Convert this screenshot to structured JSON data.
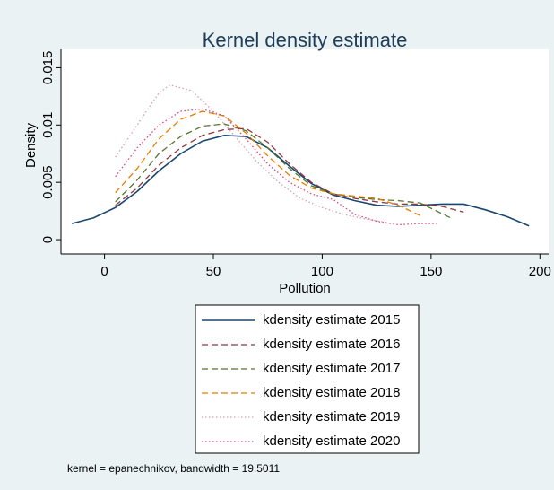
{
  "chart_data": {
    "type": "line",
    "title": "Kernel density estimate",
    "x_label": "Pollution",
    "y_label": "Density",
    "note": "kernel = epanechnikov, bandwidth = 19.5011",
    "xlim": [
      -20,
      204
    ],
    "xticks": [
      0,
      50,
      100,
      150,
      200
    ],
    "ylim": [
      -0.00125,
      0.0166
    ],
    "yticks": [
      0,
      0.005,
      0.01,
      0.015
    ],
    "series": [
      {
        "name": "kdensity estimate 2015",
        "color": "#1a476f",
        "style": "solid",
        "x": [
          -15,
          -5,
          5,
          15,
          25,
          35,
          45,
          55,
          65,
          75,
          85,
          95,
          105,
          115,
          125,
          135,
          145,
          155,
          165,
          175,
          185,
          195
        ],
        "values": [
          0.0014,
          0.0019,
          0.0028,
          0.0042,
          0.006,
          0.0075,
          0.0086,
          0.0091,
          0.009,
          0.008,
          0.0064,
          0.0049,
          0.0039,
          0.0034,
          0.003,
          0.0029,
          0.003,
          0.0031,
          0.0031,
          0.0026,
          0.002,
          0.0012
        ]
      },
      {
        "name": "kdensity estimate 2016",
        "color": "#90353b",
        "style": "dashed",
        "x": [
          5,
          15,
          25,
          35,
          45,
          55,
          65,
          75,
          85,
          95,
          105,
          115,
          125,
          135,
          145,
          155,
          165
        ],
        "values": [
          0.003,
          0.0045,
          0.0065,
          0.008,
          0.0091,
          0.0096,
          0.0097,
          0.0085,
          0.0066,
          0.005,
          0.004,
          0.0036,
          0.0033,
          0.0031,
          0.0031,
          0.0029,
          0.0024
        ]
      },
      {
        "name": "kdensity estimate 2017",
        "color": "#55752f",
        "style": "dashed",
        "x": [
          5,
          15,
          25,
          35,
          45,
          55,
          65,
          75,
          85,
          95,
          105,
          115,
          125,
          135,
          145,
          160
        ],
        "values": [
          0.0033,
          0.0052,
          0.0075,
          0.009,
          0.0099,
          0.0101,
          0.0095,
          0.008,
          0.0062,
          0.0047,
          0.004,
          0.0037,
          0.0035,
          0.0034,
          0.0032,
          0.0018
        ]
      },
      {
        "name": "kdensity estimate 2018",
        "color": "#e37e00",
        "style": "dashed",
        "x": [
          5,
          15,
          25,
          35,
          45,
          55,
          65,
          75,
          85,
          95,
          105,
          115,
          125,
          135,
          145
        ],
        "values": [
          0.0041,
          0.0062,
          0.0088,
          0.0105,
          0.0112,
          0.0108,
          0.0093,
          0.0073,
          0.0056,
          0.0045,
          0.004,
          0.0038,
          0.0036,
          0.003,
          0.0021
        ]
      },
      {
        "name": "kdensity estimate 2019",
        "color": "#d4a0b4",
        "style": "dotted",
        "x": [
          5,
          15,
          25,
          30,
          40,
          50,
          60,
          70,
          80,
          90,
          100,
          110,
          120,
          130
        ],
        "values": [
          0.0072,
          0.01,
          0.0128,
          0.0135,
          0.013,
          0.0112,
          0.009,
          0.0068,
          0.005,
          0.0036,
          0.0028,
          0.0022,
          0.0018,
          0.0015
        ]
      },
      {
        "name": "kdensity estimate 2020",
        "color": "#e0457a",
        "style": "dotted",
        "x": [
          5,
          15,
          25,
          35,
          45,
          55,
          65,
          75,
          85,
          95,
          105,
          115,
          125,
          135,
          145,
          153
        ],
        "values": [
          0.0055,
          0.008,
          0.01,
          0.0112,
          0.0114,
          0.0108,
          0.0088,
          0.0066,
          0.005,
          0.004,
          0.0035,
          0.0022,
          0.0016,
          0.0013,
          0.0014,
          0.0014
        ]
      }
    ]
  }
}
